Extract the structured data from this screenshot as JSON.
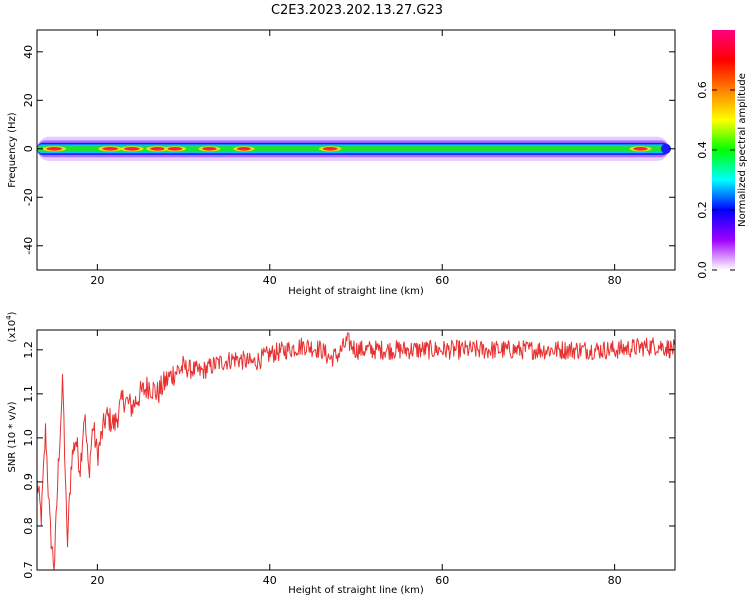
{
  "title": "C2E3.2023.202.13.27.G23",
  "chart_data": [
    {
      "type": "heatmap",
      "xlabel": "Height of straight line (km)",
      "ylabel": "Frequency (Hz)",
      "xlim": [
        13,
        87
      ],
      "ylim": [
        -50,
        49
      ],
      "xticks": [
        20,
        40,
        60,
        80
      ],
      "yticks": [
        -40,
        -20,
        0,
        20,
        40
      ],
      "band_center_hz": 0,
      "band_halfwidth_hz": 5,
      "colorbar": {
        "label": "Normalized spectral amplitude",
        "range": [
          0,
          0.8
        ],
        "ticks": [
          0.0,
          0.2,
          0.4,
          0.6
        ],
        "colors": [
          "#ffffff",
          "#a000ff",
          "#0000ff",
          "#00ffff",
          "#00ff00",
          "#ffff00",
          "#ff8000",
          "#ff0000",
          "#ff0080"
        ]
      },
      "peaks": [
        {
          "x": 15.0,
          "amp": 0.8
        },
        {
          "x": 21.5,
          "amp": 0.8
        },
        {
          "x": 24.0,
          "amp": 0.78
        },
        {
          "x": 27.0,
          "amp": 0.76
        },
        {
          "x": 29.0,
          "amp": 0.72
        },
        {
          "x": 33.0,
          "amp": 0.7
        },
        {
          "x": 37.0,
          "amp": 0.66
        },
        {
          "x": 47.0,
          "amp": 0.72
        },
        {
          "x": 83.0,
          "amp": 0.7
        }
      ]
    },
    {
      "type": "line",
      "xlabel": "Height of straight line (km)",
      "ylabel": "SNR (10 * v/v)",
      "scale_label": "(x10",
      "scale_exponent": "4",
      "xlim": [
        13,
        87
      ],
      "ylim": [
        0.7,
        1.245
      ],
      "xticks": [
        20,
        40,
        60,
        80
      ],
      "yticks": [
        0.7,
        0.8,
        0.9,
        1.0,
        1.1,
        1.2
      ],
      "color": "#e83030",
      "x": [
        13.0,
        13.5,
        14.0,
        14.5,
        15.0,
        15.5,
        16.0,
        16.5,
        17.0,
        17.5,
        18.0,
        18.5,
        19.0,
        19.5,
        20.0,
        21.0,
        22.0,
        23.0,
        24.0,
        25.0,
        26.0,
        27.0,
        28.0,
        29.0,
        30.0,
        32.0,
        34.0,
        36.0,
        38.0,
        40.0,
        42.0,
        44.0,
        46.0,
        47.0,
        48.0,
        49.0,
        50.0,
        55.0,
        60.0,
        65.0,
        70.0,
        75.0,
        80.0,
        85.0,
        87.0
      ],
      "values": [
        0.9,
        0.82,
        1.02,
        0.8,
        0.7,
        0.95,
        1.13,
        0.75,
        0.95,
        1.0,
        0.93,
        1.06,
        0.92,
        1.03,
        0.96,
        1.05,
        1.03,
        1.09,
        1.07,
        1.1,
        1.12,
        1.1,
        1.13,
        1.15,
        1.16,
        1.15,
        1.17,
        1.18,
        1.17,
        1.19,
        1.2,
        1.21,
        1.2,
        1.18,
        1.19,
        1.22,
        1.2,
        1.2,
        1.2,
        1.2,
        1.2,
        1.2,
        1.2,
        1.21,
        1.2
      ]
    }
  ]
}
